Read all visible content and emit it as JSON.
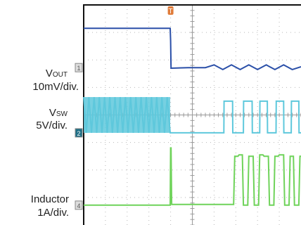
{
  "labels": {
    "vout_main": "V",
    "vout_sub": "OUT",
    "vout_scale": "10mV/div.",
    "vsw_main": "V",
    "vsw_sub": "SW",
    "vsw_scale": "5V/div.",
    "ind_name": "Inductor",
    "ind_scale": "1A/div."
  },
  "markers": {
    "ch1": "1",
    "ch2": "2",
    "ch4": "4",
    "trigger": "T"
  },
  "colors": {
    "vout": "#2a4fa8",
    "vsw": "#5ec8dc",
    "inductor": "#6fd35a",
    "grid": "#b8b8b8",
    "frame": "#111111",
    "ch_marker_bg": "#dddddd",
    "trigger": "#e07b39"
  },
  "chart_data": {
    "type": "line",
    "title": "",
    "xlabel": "",
    "ylabel": "",
    "xlim": [
      0,
      10
    ],
    "ylim": [
      0,
      8
    ],
    "grid": true,
    "trigger_time": 4.0,
    "series": [
      {
        "name": "VOUT",
        "scale": "10mV/div.",
        "x": [
          0,
          3.98,
          4.0,
          4.02,
          4.8,
          5.6,
          6.0,
          6.4,
          6.8,
          7.2,
          7.6,
          8.0,
          8.4,
          8.8,
          9.2,
          9.6,
          10
        ],
        "y": [
          7.15,
          7.15,
          6.7,
          5.7,
          5.72,
          5.72,
          5.82,
          5.65,
          5.82,
          5.65,
          5.82,
          5.65,
          5.82,
          5.65,
          5.82,
          5.65,
          5.75
        ]
      },
      {
        "name": "VSW",
        "scale": "5V/div.",
        "x": [
          0,
          0.12,
          0.24,
          0.36,
          0.48,
          0.6,
          0.72,
          0.84,
          0.96,
          1.08,
          1.2,
          1.32,
          1.44,
          1.56,
          1.68,
          1.8,
          1.92,
          2.04,
          2.16,
          2.28,
          2.4,
          2.52,
          2.64,
          2.76,
          2.88,
          3.0,
          3.12,
          3.24,
          3.36,
          3.48,
          3.6,
          3.72,
          3.84,
          3.98,
          4.0,
          6.45,
          6.46,
          6.85,
          6.86,
          7.35,
          7.36,
          7.75,
          7.76,
          8.1,
          8.11,
          8.45,
          8.46,
          8.85,
          8.86,
          9.2,
          9.21,
          9.55,
          9.56,
          9.9,
          9.91,
          10
        ],
        "y": [
          4.65,
          3.35,
          4.65,
          3.35,
          4.65,
          3.35,
          4.65,
          3.35,
          4.65,
          3.35,
          4.65,
          3.35,
          4.65,
          3.35,
          4.65,
          3.35,
          4.65,
          3.35,
          4.65,
          3.35,
          4.65,
          3.35,
          4.65,
          3.35,
          4.65,
          3.35,
          4.65,
          3.35,
          4.65,
          3.35,
          4.65,
          3.35,
          4.65,
          3.35,
          3.35,
          3.35,
          4.5,
          4.5,
          3.35,
          3.35,
          4.5,
          4.5,
          3.35,
          3.35,
          4.5,
          4.5,
          3.35,
          3.35,
          4.5,
          4.5,
          3.35,
          3.35,
          4.5,
          4.5,
          3.35,
          3.35
        ]
      },
      {
        "name": "Inductor",
        "scale": "1A/div.",
        "x": [
          0,
          3.98,
          4.0,
          4.02,
          4.05,
          6.9,
          6.95,
          7.1,
          7.15,
          7.3,
          7.35,
          7.55,
          7.6,
          7.8,
          7.85,
          8.05,
          8.1,
          8.25,
          8.3,
          8.5,
          8.55,
          8.75,
          8.8,
          8.95,
          9.0,
          9.2,
          9.25,
          9.45,
          9.5,
          9.65,
          9.7,
          9.9,
          9.95,
          10
        ],
        "y": [
          0.72,
          0.72,
          2.8,
          2.8,
          0.75,
          0.75,
          2.5,
          2.5,
          2.55,
          2.55,
          0.72,
          0.72,
          2.5,
          2.5,
          0.72,
          0.72,
          2.55,
          2.55,
          2.5,
          2.5,
          0.72,
          0.72,
          2.5,
          2.5,
          2.55,
          2.55,
          0.72,
          0.72,
          2.5,
          2.5,
          0.72,
          0.72,
          2.5,
          2.5
        ]
      }
    ]
  }
}
